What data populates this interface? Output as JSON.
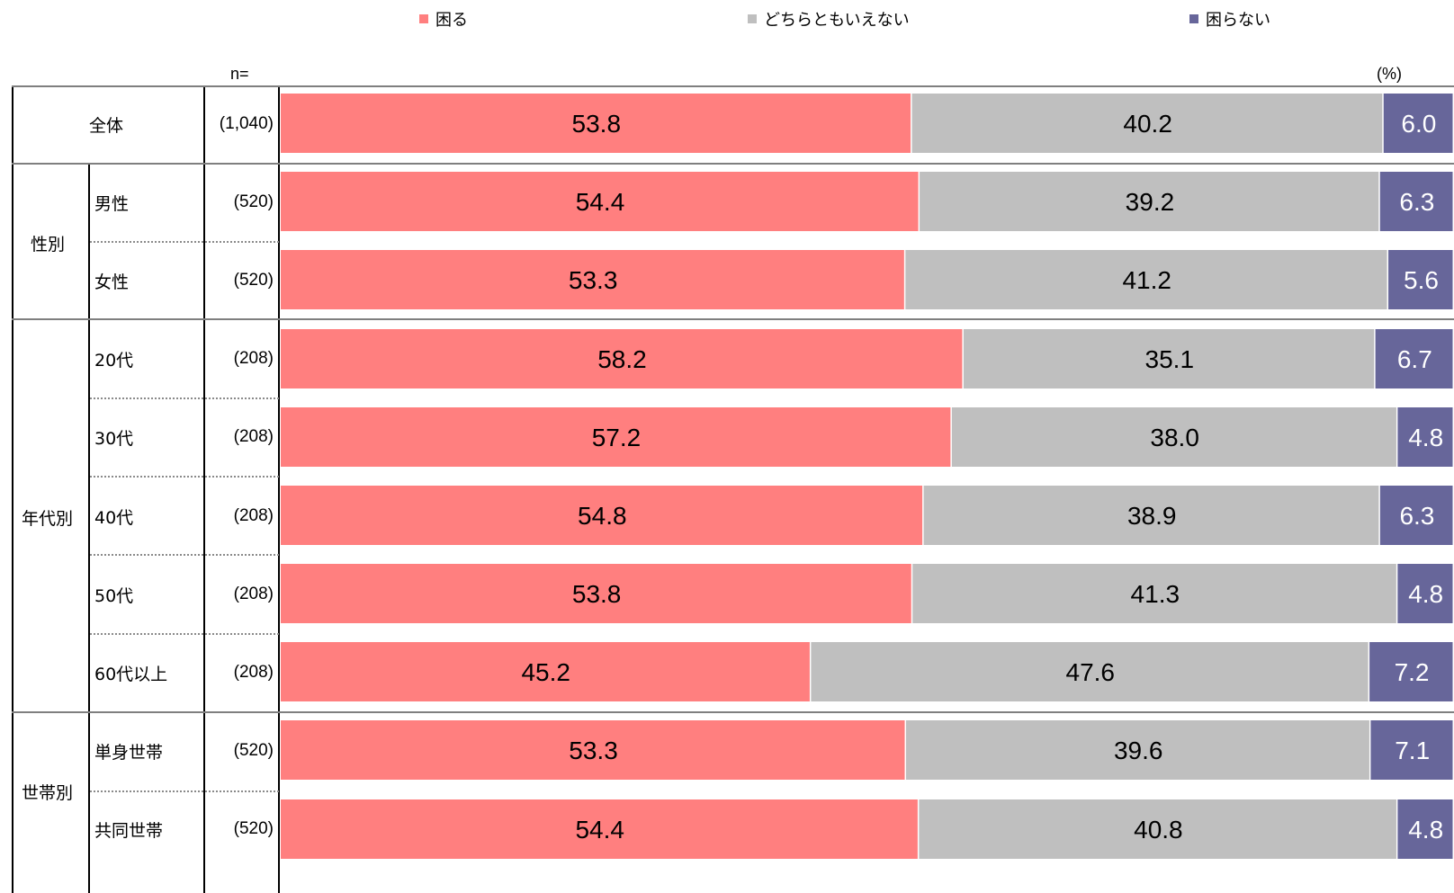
{
  "chart_data": {
    "type": "bar",
    "stacked": true,
    "orientation": "horizontal",
    "unit_label": "(%)",
    "n_header": "n=",
    "xlim": [
      0,
      100
    ],
    "legend_position": "top",
    "series": [
      {
        "name": "困る",
        "color": "#ff7f7f",
        "values": [
          53.8,
          54.4,
          53.3,
          58.2,
          57.2,
          54.8,
          53.8,
          45.2,
          53.3,
          54.4
        ]
      },
      {
        "name": "どちらともいえない",
        "color": "#bfbfbf",
        "values": [
          40.2,
          39.2,
          41.2,
          35.1,
          38.0,
          38.9,
          41.3,
          47.6,
          39.6,
          40.8
        ]
      },
      {
        "name": "困らない",
        "color": "#67669a",
        "values": [
          6.0,
          6.3,
          5.6,
          6.7,
          4.8,
          6.3,
          4.8,
          7.2,
          7.1,
          4.8
        ]
      }
    ],
    "rows": [
      {
        "label": "全体",
        "n": "(1,040)"
      },
      {
        "label": "男性",
        "n": "(520)"
      },
      {
        "label": "女性",
        "n": "(520)"
      },
      {
        "label": "20代",
        "n": "(208)"
      },
      {
        "label": "30代",
        "n": "(208)"
      },
      {
        "label": "40代",
        "n": "(208)"
      },
      {
        "label": "50代",
        "n": "(208)"
      },
      {
        "label": "60代以上",
        "n": "(208)"
      },
      {
        "label": "単身世帯",
        "n": "(520)"
      },
      {
        "label": "共同世帯",
        "n": "(520)"
      }
    ],
    "groups": [
      {
        "label": "性別"
      },
      {
        "label": "年代別"
      },
      {
        "label": "世帯別"
      }
    ]
  }
}
